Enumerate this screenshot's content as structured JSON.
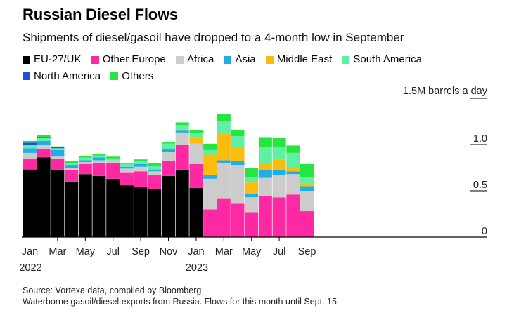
{
  "title": "Russian Diesel Flows",
  "subtitle": "Shipments of diesel/gasoil have dropped to a 4-month low in September",
  "legend": [
    {
      "name": "EU-27/UK",
      "color": "#000000"
    },
    {
      "name": "Other Europe",
      "color": "#ff2aa3"
    },
    {
      "name": "Africa",
      "color": "#cccccc"
    },
    {
      "name": "Asia",
      "color": "#1faee8"
    },
    {
      "name": "Middle East",
      "color": "#fbbc0e"
    },
    {
      "name": "South America",
      "color": "#5ff0a4"
    },
    {
      "name": "North America",
      "color": "#1e4fe0"
    },
    {
      "name": "Others",
      "color": "#26e540"
    }
  ],
  "source": {
    "line1": "Source: Vortexa data, compiled by Bloomberg",
    "line2": "Waterborne gasoil/diesel exports from Russia. Flows for this month until Sept. 15"
  },
  "chart_data": {
    "type": "bar",
    "stacked": true,
    "unit_label": "1.5M barrels a day",
    "ylim": [
      0,
      1.5
    ],
    "yticks": [
      {
        "value": 0,
        "label": "0"
      },
      {
        "value": 0.5,
        "label": "0.5"
      },
      {
        "value": 1.0,
        "label": "1.0"
      },
      {
        "value": 1.5,
        "label": ""
      }
    ],
    "x_tick_labels": [
      {
        "index": 0,
        "label": "Jan",
        "sub": "2022"
      },
      {
        "index": 2,
        "label": "Mar",
        "sub": ""
      },
      {
        "index": 4,
        "label": "May",
        "sub": ""
      },
      {
        "index": 6,
        "label": "Jul",
        "sub": ""
      },
      {
        "index": 8,
        "label": "Sep",
        "sub": ""
      },
      {
        "index": 10,
        "label": "Nov",
        "sub": ""
      },
      {
        "index": 12,
        "label": "Jan",
        "sub": "2023"
      },
      {
        "index": 14,
        "label": "Mar",
        "sub": ""
      },
      {
        "index": 16,
        "label": "May",
        "sub": ""
      },
      {
        "index": 18,
        "label": "Jul",
        "sub": ""
      },
      {
        "index": 20,
        "label": "Sep",
        "sub": ""
      }
    ],
    "categories": [
      "Jan 2022",
      "Feb 2022",
      "Mar 2022",
      "Apr 2022",
      "May 2022",
      "Jun 2022",
      "Jul 2022",
      "Aug 2022",
      "Sep 2022",
      "Oct 2022",
      "Nov 2022",
      "Dec 2022",
      "Jan 2023",
      "Feb 2023",
      "Mar 2023",
      "Apr 2023",
      "May 2023",
      "Jun 2023",
      "Jul 2023",
      "Aug 2023",
      "Sep 2023"
    ],
    "series": [
      {
        "name": "EU-27/UK",
        "color": "#000000",
        "values": [
          0.73,
          0.86,
          0.72,
          0.6,
          0.68,
          0.66,
          0.63,
          0.56,
          0.54,
          0.52,
          0.66,
          0.72,
          0.53,
          0,
          0,
          0,
          0,
          0,
          0,
          0,
          0
        ]
      },
      {
        "name": "Other Europe",
        "color": "#ff2aa3",
        "values": [
          0.12,
          0.09,
          0.13,
          0.12,
          0.11,
          0.14,
          0.17,
          0.14,
          0.17,
          0.15,
          0.16,
          0.28,
          0.26,
          0.3,
          0.42,
          0.36,
          0.27,
          0.44,
          0.43,
          0.46,
          0.28
        ]
      },
      {
        "name": "Africa",
        "color": "#cccccc",
        "values": [
          0.06,
          0.05,
          0.02,
          0.03,
          0.02,
          0.03,
          0.03,
          0.04,
          0.05,
          0.04,
          0.1,
          0.13,
          0.22,
          0.33,
          0.38,
          0.42,
          0.16,
          0.2,
          0.24,
          0.22,
          0.22
        ]
      },
      {
        "name": "Asia",
        "color": "#1faee8",
        "values": [
          0.05,
          0.04,
          0.07,
          0.03,
          0.02,
          0.03,
          0,
          0.02,
          0.03,
          0.02,
          0.03,
          0.02,
          0,
          0.04,
          0.03,
          0.04,
          0.04,
          0.09,
          0.05,
          0.03,
          0.05
        ]
      },
      {
        "name": "Middle East",
        "color": "#fbbc0e",
        "values": [
          0,
          0,
          0,
          0,
          0,
          0,
          0,
          0,
          0,
          0,
          0,
          0.01,
          0.07,
          0.22,
          0.29,
          0.15,
          0.12,
          0.07,
          0.12,
          0.04,
          0.03
        ]
      },
      {
        "name": "South America",
        "color": "#5ff0a4",
        "values": [
          0.04,
          0.03,
          0.02,
          0.02,
          0.03,
          0.02,
          0.02,
          0.03,
          0.03,
          0.04,
          0.06,
          0.05,
          0.04,
          0.05,
          0.13,
          0.12,
          0.06,
          0.17,
          0.13,
          0.16,
          0.07
        ]
      },
      {
        "name": "North America",
        "color": "#1e4fe0",
        "values": [
          0.02,
          0.01,
          0.01,
          0,
          0,
          0,
          0,
          0,
          0,
          0,
          0,
          0,
          0,
          0,
          0,
          0,
          0,
          0,
          0,
          0,
          0
        ]
      },
      {
        "name": "Others",
        "color": "#26e540",
        "values": [
          0.02,
          0.02,
          0.01,
          0.02,
          0.02,
          0.02,
          0.02,
          0.01,
          0.02,
          0.03,
          0.02,
          0.03,
          0.04,
          0.07,
          0.08,
          0.07,
          0.1,
          0.11,
          0.1,
          0.08,
          0.14
        ]
      }
    ],
    "shaded_from_index": 13
  }
}
